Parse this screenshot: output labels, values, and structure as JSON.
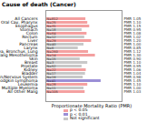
{
  "chart_data": {
    "type": "bar",
    "orientation": "horizontal",
    "title": "Cause of death (Cancer)",
    "x_label": "Proportionate Mortality Ratio (PMR)",
    "categories": [
      "All Cancers",
      "Oral Cav, Pharynx",
      "Esophagus",
      "Stomach",
      "Colon",
      "Rectum",
      "Liver",
      "Pancreas",
      "Larynx",
      "Trachea, Bronchus, Lung",
      "Malig Mesothelioma",
      "Skin",
      "Breast",
      "Prostate",
      "Kidney",
      "Bladder",
      "Brain/Nervous System",
      "Non-Hodgkin Lymphoma",
      "Leukemia",
      "Multiple Myeloma",
      "All Other Malig"
    ],
    "values": [
      1.05,
      1.1,
      1.15,
      0.95,
      1.08,
      1.02,
      1.2,
      1.0,
      0.85,
      1.12,
      1.3,
      0.9,
      1.1,
      0.95,
      1.06,
      1.04,
      0.98,
      1.45,
      1.1,
      1.0,
      1.03
    ],
    "value_labels": [
      "PMR 1.05",
      "PMR 1.10",
      "PMR 1.15",
      "PMR 0.95",
      "PMR 1.08",
      "PMR 1.02",
      "PMR 1.20",
      "PMR 1.00",
      "PMR 0.85",
      "PMR 1.12",
      "PMR 1.30",
      "PMR 0.90",
      "PMR 1.10",
      "PMR 0.95",
      "PMR 1.06",
      "PMR 1.04",
      "PMR 0.98",
      "PMR 1.45",
      "PMR 1.10",
      "PMR 1.00",
      "PMR 1.03"
    ],
    "count_labels": [
      "N=812",
      "N=25",
      "N=31",
      "N=18",
      "N=64",
      "N=12",
      "N=29",
      "N=40",
      "N=6",
      "N=260",
      "N=14",
      "N=15",
      "N=3",
      "N=52",
      "N=22",
      "N=17",
      "N=19",
      "N=41",
      "N=28",
      "N=11",
      "N=105"
    ],
    "colors": [
      "#f4a0a0",
      "#f4a0a0",
      "#f4a0a0",
      "#c8c8c8",
      "#f4a0a0",
      "#c8c8c8",
      "#f4a0a0",
      "#c8c8c8",
      "#c8c8c8",
      "#f4a0a0",
      "#f4a0a0",
      "#c8c8c8",
      "#c8c8c8",
      "#c8c8c8",
      "#f4a0a0",
      "#c8c8c8",
      "#c8c8c8",
      "#9b8fd6",
      "#f4a0a0",
      "#c8c8c8",
      "#f4a0a0"
    ],
    "xlim": [
      0,
      2
    ],
    "xticks": [],
    "tick_labels": "y",
    "data_labels": true,
    "legend": "bottom",
    "legend_entries": [
      {
        "name": "p < 0.05",
        "color": "#f4a0a0"
      },
      {
        "name": "p < 0.01",
        "color": "#9b8fd6"
      },
      {
        "name": "Not significant",
        "color": "#c8c8c8"
      }
    ]
  }
}
